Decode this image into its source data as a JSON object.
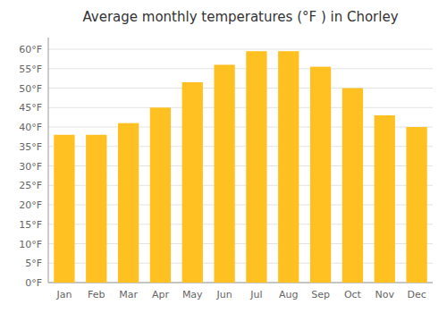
{
  "chart_data": {
    "type": "bar",
    "title": "Average monthly temperatures (°F ) in Chorley",
    "categories": [
      "Jan",
      "Feb",
      "Mar",
      "Apr",
      "May",
      "Jun",
      "Jul",
      "Aug",
      "Sep",
      "Oct",
      "Nov",
      "Dec"
    ],
    "values": [
      38,
      38,
      41,
      45,
      51.5,
      56,
      59.5,
      59.5,
      55.5,
      50,
      43,
      40
    ],
    "color": "#FFC022",
    "ylim": [
      0,
      63
    ],
    "yticks": [
      {
        "value": 0,
        "label": "0°F"
      },
      {
        "value": 5,
        "label": "5°F"
      },
      {
        "value": 10,
        "label": "10°F"
      },
      {
        "value": 15,
        "label": "15°F"
      },
      {
        "value": 20,
        "label": "20°F"
      },
      {
        "value": 25,
        "label": "25°F"
      },
      {
        "value": 30,
        "label": "30°F"
      },
      {
        "value": 35,
        "label": "35°F"
      },
      {
        "value": 40,
        "label": "40°F"
      },
      {
        "value": 45,
        "label": "45°F"
      },
      {
        "value": 50,
        "label": "50°F"
      },
      {
        "value": 55,
        "label": "55°F"
      },
      {
        "value": 60,
        "label": "60°F"
      }
    ],
    "grid": true
  }
}
